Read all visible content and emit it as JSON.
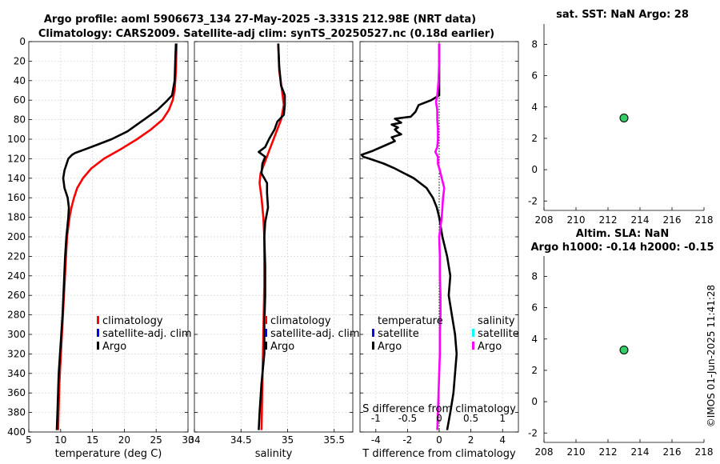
{
  "header": {
    "line1": "Argo profile: aoml 5906673_134 27-May-2025 -3.331S 212.98E (NRT data)",
    "line2": "Climatology: CARS2009. Satellite-adj clim: synTS_20250527.nc (0.18d earlier)"
  },
  "side_label": "©IMOS 01-Jun-2025 11:41:28",
  "colors": {
    "climatology": "#ff0000",
    "satellite": "#0000ff",
    "argo": "#000000",
    "sal_diff": "#ff00ff",
    "sal_sat": "#00ffff",
    "marker": "#33cc66"
  },
  "depth_axis": {
    "ylim": [
      0,
      400
    ],
    "ticks": [
      0,
      20,
      40,
      60,
      80,
      100,
      120,
      140,
      160,
      180,
      200,
      220,
      240,
      260,
      280,
      300,
      320,
      340,
      360,
      380,
      400
    ]
  },
  "chart_data": [
    {
      "id": "temperature",
      "type": "line",
      "xlabel": "temperature (deg C)",
      "xlim": [
        5,
        30
      ],
      "xticks": [
        5,
        10,
        15,
        20,
        25,
        30
      ],
      "legend": [
        "climatology",
        "satellite-adj. clim",
        "Argo"
      ],
      "series": [
        {
          "name": "climatology",
          "color": "#ff0000",
          "depth": [
            2,
            30,
            50,
            60,
            70,
            80,
            90,
            100,
            110,
            120,
            130,
            140,
            150,
            160,
            170,
            180,
            200,
            250,
            300,
            350,
            398
          ],
          "values": [
            28.2,
            28.1,
            27.9,
            27.6,
            27,
            26,
            24.2,
            22,
            19.5,
            16.8,
            14.8,
            13.5,
            12.6,
            12.1,
            11.7,
            11.4,
            11,
            10.6,
            10.2,
            9.8,
            9.6
          ]
        },
        {
          "name": "Argo",
          "color": "#000000",
          "depth": [
            2,
            20,
            40,
            55,
            62,
            70,
            78,
            85,
            92,
            100,
            105,
            110,
            114,
            116,
            120,
            126,
            132,
            140,
            150,
            160,
            170,
            180,
            200,
            220,
            250,
            280,
            300,
            320,
            340,
            360,
            380,
            398
          ],
          "values": [
            28.1,
            28,
            27.9,
            27.5,
            26.5,
            25.2,
            23.5,
            22,
            20.5,
            18,
            16,
            14,
            12.3,
            11.8,
            11.2,
            10.9,
            10.6,
            10.4,
            10.6,
            11.1,
            11.3,
            11.2,
            10.9,
            10.7,
            10.5,
            10.3,
            10.1,
            9.9,
            9.7,
            9.6,
            9.5,
            9.4
          ]
        }
      ]
    },
    {
      "id": "salinity",
      "type": "line",
      "xlabel": "salinity",
      "xlim": [
        34,
        35.7
      ],
      "xticks": [
        34,
        34.5,
        35,
        35.5
      ],
      "xticklabels": [
        "34",
        "34.5",
        "35",
        "35.5"
      ],
      "legend": [
        "climatology",
        "satellite-adj. clim",
        "Argo"
      ],
      "series": [
        {
          "name": "climatology",
          "color": "#ff0000",
          "depth": [
            2,
            30,
            50,
            65,
            80,
            95,
            110,
            125,
            135,
            145,
            160,
            180,
            200,
            250,
            300,
            350,
            398
          ],
          "values": [
            34.9,
            34.91,
            34.94,
            34.96,
            34.93,
            34.87,
            34.81,
            34.75,
            34.71,
            34.7,
            34.72,
            34.74,
            34.75,
            34.75,
            34.74,
            34.73,
            34.72
          ]
        },
        {
          "name": "Argo",
          "color": "#000000",
          "depth": [
            2,
            25,
            45,
            55,
            65,
            75,
            82,
            90,
            100,
            108,
            113,
            118,
            125,
            135,
            145,
            155,
            170,
            185,
            200,
            230,
            260,
            290,
            320,
            350,
            380,
            398
          ],
          "values": [
            34.9,
            34.91,
            34.93,
            34.97,
            34.97,
            34.96,
            34.89,
            34.86,
            34.8,
            34.76,
            34.69,
            34.76,
            34.73,
            34.72,
            34.78,
            34.78,
            34.79,
            34.76,
            34.75,
            34.76,
            34.76,
            34.75,
            34.75,
            34.72,
            34.7,
            34.69
          ]
        }
      ]
    },
    {
      "id": "difference",
      "type": "line",
      "xlabel": "T difference from climatology",
      "xlim": [
        -5,
        5
      ],
      "xticks": [
        -4,
        -2,
        0,
        2,
        4
      ],
      "top_axis_label": "S difference from climatology",
      "top_xlim": [
        -1.25,
        1.25
      ],
      "top_xticks": [
        -1,
        -0.5,
        0,
        0.5,
        1
      ],
      "top_xticklabels": [
        "-1",
        "-0.5",
        "0",
        "0.5",
        "1"
      ],
      "legend_temp": [
        "temperature",
        "satellite",
        "Argo"
      ],
      "legend_sal": [
        "salinity",
        "satellite",
        "Argo"
      ],
      "series": [
        {
          "name": "temperature Argo",
          "color": "#000000",
          "depth": [
            2,
            40,
            55,
            60,
            65,
            72,
            77,
            79,
            83,
            85,
            88,
            90,
            93,
            95,
            98,
            102,
            107,
            112,
            116,
            118,
            120,
            125,
            130,
            140,
            150,
            160,
            170,
            180,
            190,
            200,
            220,
            240,
            260,
            280,
            300,
            320,
            340,
            360,
            380,
            398
          ],
          "values": [
            0,
            0,
            0,
            -0.5,
            -1.3,
            -1.5,
            -1.8,
            -2.8,
            -2.4,
            -3,
            -2.6,
            -2.8,
            -2.6,
            -2.4,
            -3,
            -2.8,
            -3.5,
            -4.2,
            -4.9,
            -4.8,
            -4.4,
            -3.5,
            -2.8,
            -1.6,
            -0.8,
            -0.4,
            -0.15,
            0,
            0.1,
            0.2,
            0.5,
            0.7,
            0.6,
            0.8,
            1,
            1.1,
            1,
            0.9,
            0.7,
            0.5
          ]
        },
        {
          "name": "salinity Argo",
          "color": "#ff00ff",
          "depth": [
            2,
            20,
            40,
            55,
            62,
            70,
            80,
            90,
            100,
            108,
            113,
            118,
            125,
            132,
            140,
            150,
            160,
            170,
            180,
            190,
            200,
            220,
            240,
            260,
            280,
            300,
            320,
            340,
            360,
            380,
            398
          ],
          "values": [
            0,
            0,
            -0.01,
            -0.03,
            -0.05,
            -0.03,
            -0.03,
            -0.02,
            -0.02,
            -0.03,
            -0.06,
            -0.02,
            -0.02,
            0.01,
            0.04,
            0.08,
            0.06,
            0.05,
            0.04,
            0.02,
            0,
            0.01,
            0.01,
            0.02,
            0.02,
            0.01,
            0.01,
            0,
            -0.01,
            -0.02,
            -0.03
          ]
        }
      ]
    },
    {
      "id": "sst_panel",
      "type": "scatter",
      "title": "sat. SST: NaN Argo: 28",
      "xlim": [
        208,
        218
      ],
      "ylim": [
        -2.6,
        9.3
      ],
      "xticks": [
        208,
        210,
        212,
        214,
        216,
        218
      ],
      "yticks": [
        -2,
        0,
        2,
        4,
        6,
        8
      ],
      "points": [
        {
          "x": 213,
          "y": 3.3
        }
      ]
    },
    {
      "id": "sla_panel",
      "type": "scatter",
      "title_line1": "Altim. SLA: NaN",
      "title_line2": "Argo h1000: -0.14 h2000: -0.15",
      "xlim": [
        208,
        218
      ],
      "ylim": [
        -2.6,
        9.3
      ],
      "xticks": [
        208,
        210,
        212,
        214,
        216,
        218
      ],
      "yticks": [
        -2,
        0,
        2,
        4,
        6,
        8
      ],
      "points": [
        {
          "x": 213,
          "y": 3.3
        }
      ]
    }
  ]
}
